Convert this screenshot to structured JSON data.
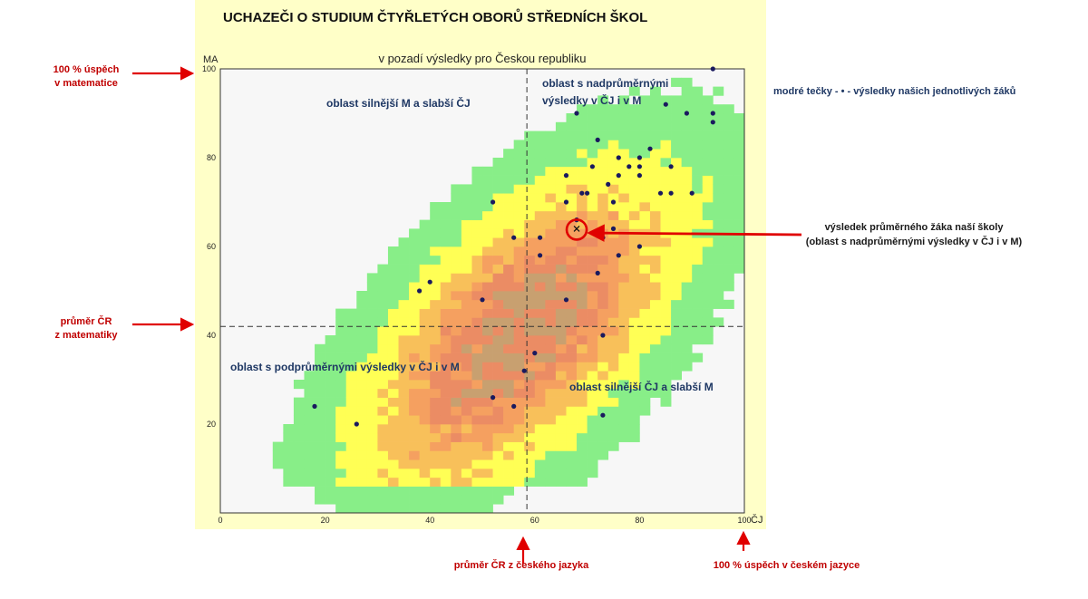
{
  "chart_data": {
    "type": "heatmap",
    "title": "UCHAZEČI O STUDIUM ČTYŘLETÝCH OBORŮ STŘEDNÍCH ŠKOL",
    "subtitle": "v pozadí výsledky pro Českou republiku",
    "xlabel": "ČJ",
    "ylabel": "MA",
    "xlim": [
      0,
      100
    ],
    "ylim": [
      0,
      100
    ],
    "xticks": [
      0,
      20,
      40,
      60,
      80,
      100
    ],
    "yticks": [
      20,
      40,
      60,
      80,
      100
    ],
    "national_mean": {
      "cj": 58.5,
      "ma": 42
    },
    "school_average": {
      "cj": 68,
      "ma": 64
    },
    "region_labels": {
      "top_left": "oblast silnější M a slabší ČJ",
      "top_right_line1": "oblast s nadprůměrnými",
      "top_right_line2": "výsledky v ČJ i v M",
      "bottom_left": "oblast s podprůměrnými výsledky v ČJ i v M",
      "bottom_right": "oblast silnější ČJ a slabší M"
    },
    "heat_colors": [
      "#88ee88",
      "#ffff55",
      "#f8c05a",
      "#f5a060",
      "#eb8c64",
      "#c8a070"
    ],
    "dot_color": "#1a1a5e",
    "students": [
      [
        94,
        100
      ],
      [
        85,
        92
      ],
      [
        68,
        90
      ],
      [
        89,
        90
      ],
      [
        94,
        90
      ],
      [
        94,
        88
      ],
      [
        72,
        84
      ],
      [
        82,
        82
      ],
      [
        76,
        80
      ],
      [
        80,
        80
      ],
      [
        78,
        78
      ],
      [
        80,
        78
      ],
      [
        86,
        78
      ],
      [
        71,
        78
      ],
      [
        76,
        76
      ],
      [
        80,
        76
      ],
      [
        66,
        76
      ],
      [
        74,
        74
      ],
      [
        69,
        72
      ],
      [
        70,
        72
      ],
      [
        84,
        72
      ],
      [
        86,
        72
      ],
      [
        90,
        72
      ],
      [
        52,
        70
      ],
      [
        66,
        70
      ],
      [
        75,
        70
      ],
      [
        68,
        66
      ],
      [
        75,
        64
      ],
      [
        56,
        62
      ],
      [
        61,
        62
      ],
      [
        73,
        62
      ],
      [
        80,
        60
      ],
      [
        61,
        58
      ],
      [
        76,
        58
      ],
      [
        72,
        54
      ],
      [
        40,
        52
      ],
      [
        38,
        50
      ],
      [
        50,
        48
      ],
      [
        66,
        48
      ],
      [
        73,
        40
      ],
      [
        60,
        36
      ],
      [
        58,
        32
      ],
      [
        52,
        26
      ],
      [
        56,
        24
      ],
      [
        73,
        22
      ],
      [
        18,
        24
      ],
      [
        26,
        20
      ]
    ]
  },
  "annotations": {
    "math_max_line1": "100 % úspěch",
    "math_max_line2": "v matematice",
    "math_mean_line1": "průměr ČR",
    "math_mean_line2": "z matematiky",
    "cj_mean": "průměr ČR z českého jazyka",
    "cj_max": "100 % úspěch v českém jazyce",
    "legend_note": "modré tečky - • - výsledky našich jednotlivých žáků",
    "school_line1": "výsledek průměrného žáka naší školy",
    "school_line2": "(oblast s nadprůměrnými  výsledky v ČJ i v M)"
  },
  "colors": {
    "annotation_red": "#c00000",
    "panel_bg": "#ffffc8",
    "plot_bg": "#f7f7f7"
  }
}
